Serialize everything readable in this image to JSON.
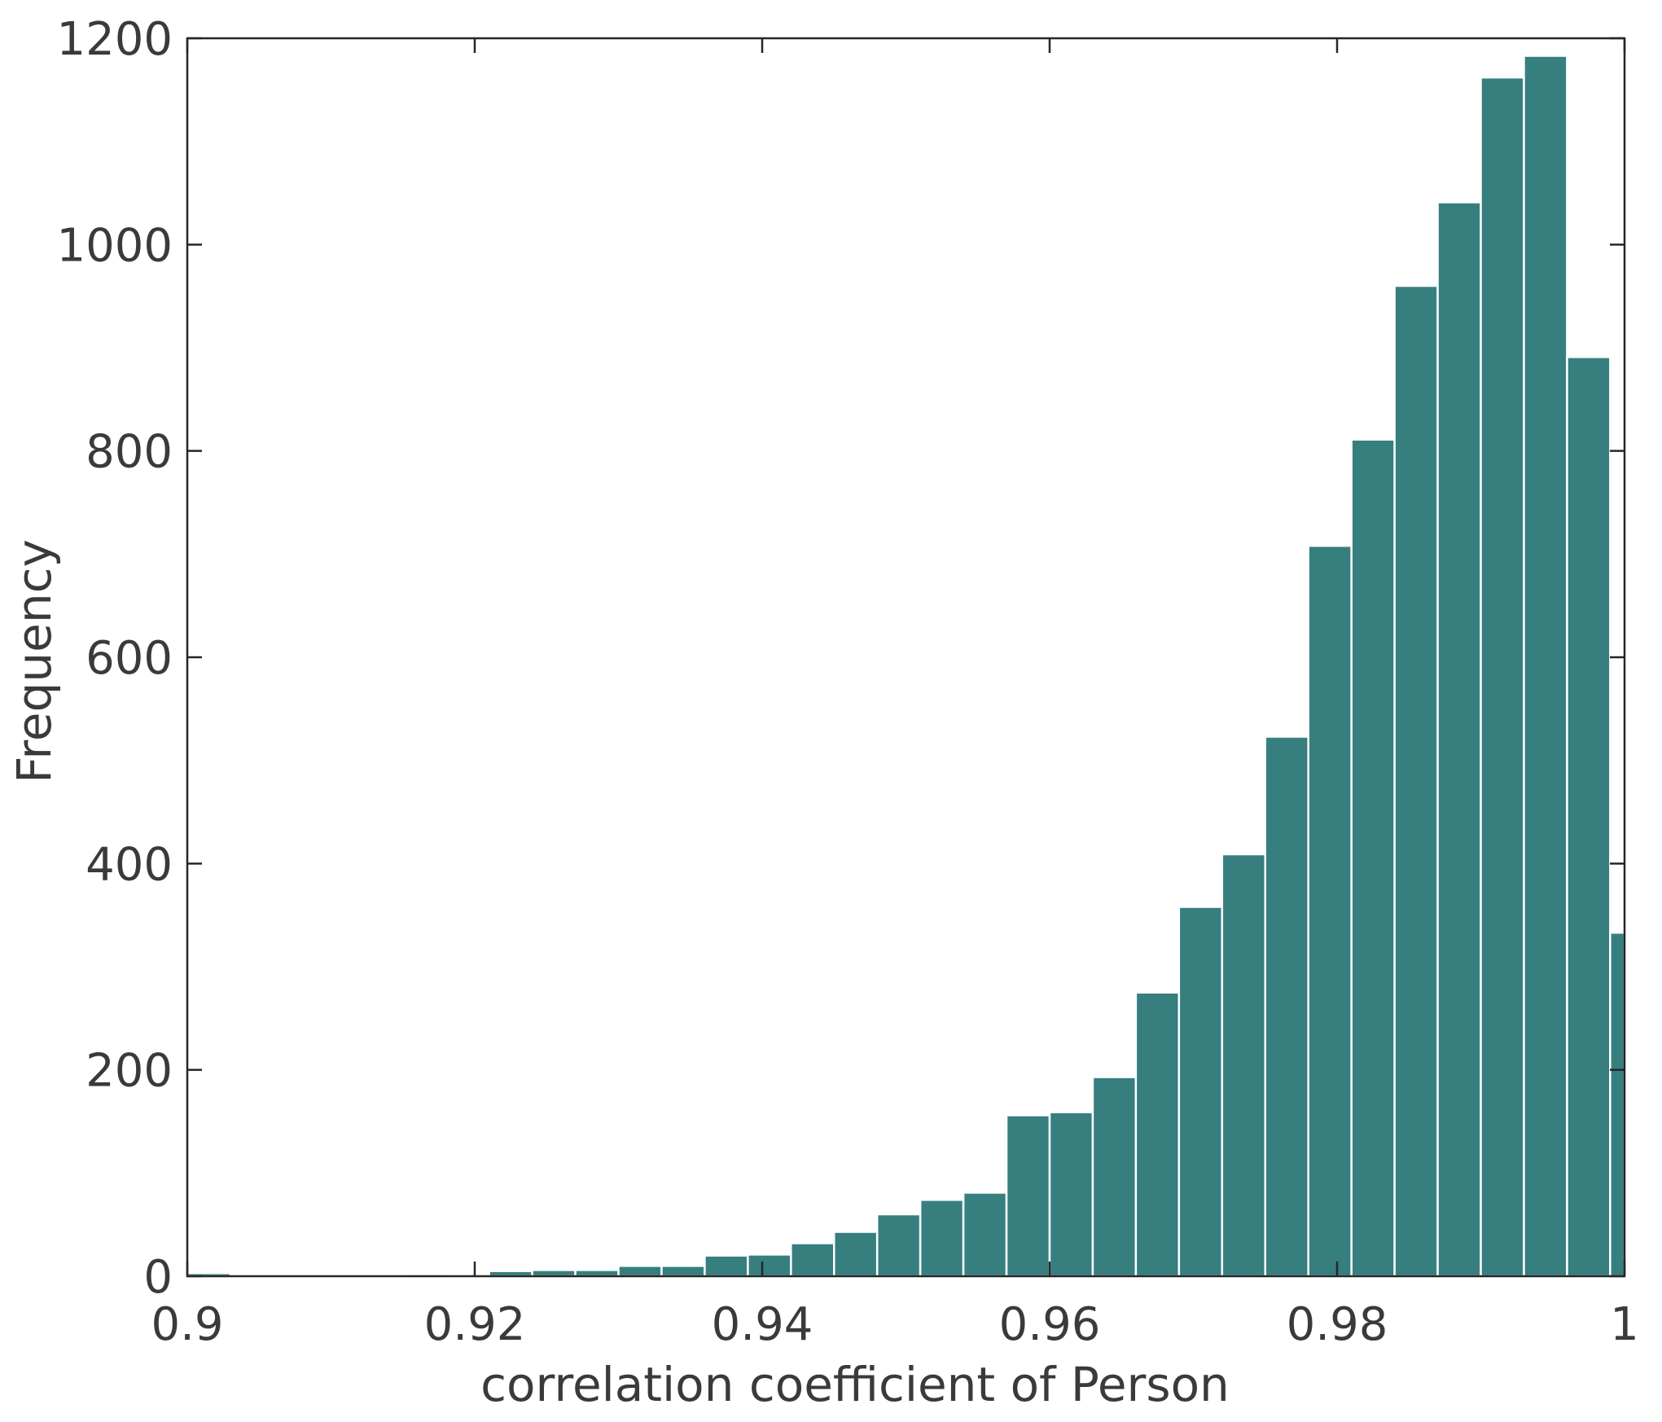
{
  "chart_data": {
    "type": "bar",
    "subtype": "histogram",
    "title": "",
    "xlabel": "correlation coefficient of Person",
    "ylabel": "Frequency",
    "xlim": [
      0.9,
      1.0
    ],
    "ylim": [
      0,
      1200
    ],
    "xticks": [
      "0.9",
      "0.92",
      "0.94",
      "0.96",
      "0.98",
      "1"
    ],
    "yticks": [
      "0",
      "200",
      "400",
      "600",
      "800",
      "1000",
      "1200"
    ],
    "grid": false,
    "legend": "none",
    "bar_color": "#377e7f",
    "bin_width": 0.003,
    "bin_starts": [
      0.9,
      0.903,
      0.906,
      0.909,
      0.912,
      0.915,
      0.918,
      0.921,
      0.924,
      0.927,
      0.93,
      0.933,
      0.936,
      0.939,
      0.942,
      0.945,
      0.948,
      0.951,
      0.954,
      0.957,
      0.96,
      0.963,
      0.966,
      0.969,
      0.972,
      0.975,
      0.978,
      0.981,
      0.984,
      0.987,
      0.99,
      0.993,
      0.996,
      0.999
    ],
    "values": [
      3,
      1,
      1,
      1,
      1,
      2,
      1,
      5,
      6,
      6,
      10,
      10,
      20,
      21,
      32,
      43,
      60,
      74,
      81,
      156,
      159,
      193,
      275,
      358,
      409,
      523,
      708,
      811,
      960,
      1041,
      1162,
      1183,
      891,
      333
    ]
  }
}
